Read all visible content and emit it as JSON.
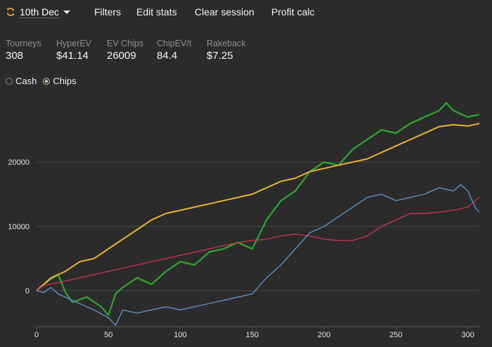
{
  "header": {
    "session_label": "10th Dec",
    "menu": [
      "Filters",
      "Edit stats",
      "Clear session",
      "Profit calc"
    ]
  },
  "stats": [
    {
      "title": "Tourneys",
      "value": "308"
    },
    {
      "title": "HyperEV",
      "value": "$41.14"
    },
    {
      "title": "EV Chips",
      "value": "26009"
    },
    {
      "title": "ChipEV/t",
      "value": "84.4"
    },
    {
      "title": "Rakeback",
      "value": "$7.25"
    }
  ],
  "mode": {
    "options": [
      "Cash",
      "Chips"
    ],
    "selected": "Chips"
  },
  "chart_data": {
    "type": "line",
    "xlim": [
      0,
      308
    ],
    "ylim": [
      -5600,
      29500
    ],
    "x_ticks": [
      0,
      50,
      100,
      150,
      200,
      250,
      300
    ],
    "y_ticks": [
      0,
      10000,
      20000
    ],
    "grid": "horizontal",
    "series": [
      {
        "color": "#2ea02e",
        "points": [
          [
            0,
            0
          ],
          [
            8,
            1500
          ],
          [
            15,
            2500
          ],
          [
            20,
            -200
          ],
          [
            25,
            -1800
          ],
          [
            35,
            -1000
          ],
          [
            45,
            -2500
          ],
          [
            50,
            -3800
          ],
          [
            55,
            -500
          ],
          [
            60,
            500
          ],
          [
            70,
            2000
          ],
          [
            80,
            1000
          ],
          [
            90,
            3000
          ],
          [
            100,
            4500
          ],
          [
            110,
            4000
          ],
          [
            120,
            6000
          ],
          [
            130,
            6500
          ],
          [
            140,
            7500
          ],
          [
            150,
            6500
          ],
          [
            160,
            11000
          ],
          [
            170,
            14000
          ],
          [
            180,
            15500
          ],
          [
            190,
            18500
          ],
          [
            200,
            20000
          ],
          [
            210,
            19500
          ],
          [
            220,
            22000
          ],
          [
            230,
            23500
          ],
          [
            240,
            25000
          ],
          [
            250,
            24500
          ],
          [
            260,
            26000
          ],
          [
            270,
            27000
          ],
          [
            280,
            28000
          ],
          [
            285,
            29200
          ],
          [
            290,
            28000
          ],
          [
            300,
            27000
          ],
          [
            308,
            27400
          ]
        ]
      },
      {
        "color": "#e8b336",
        "points": [
          [
            0,
            0
          ],
          [
            10,
            2000
          ],
          [
            20,
            3000
          ],
          [
            30,
            4500
          ],
          [
            40,
            5000
          ],
          [
            50,
            6500
          ],
          [
            60,
            8000
          ],
          [
            70,
            9500
          ],
          [
            80,
            11000
          ],
          [
            90,
            12000
          ],
          [
            100,
            12500
          ],
          [
            110,
            13000
          ],
          [
            120,
            13500
          ],
          [
            130,
            14000
          ],
          [
            140,
            14500
          ],
          [
            150,
            15000
          ],
          [
            160,
            16000
          ],
          [
            170,
            17000
          ],
          [
            180,
            17500
          ],
          [
            190,
            18500
          ],
          [
            200,
            19000
          ],
          [
            210,
            19500
          ],
          [
            220,
            20000
          ],
          [
            230,
            20500
          ],
          [
            240,
            21500
          ],
          [
            250,
            22500
          ],
          [
            260,
            23500
          ],
          [
            270,
            24500
          ],
          [
            280,
            25500
          ],
          [
            290,
            25800
          ],
          [
            300,
            25600
          ],
          [
            308,
            26000
          ]
        ]
      },
      {
        "color": "#c8304f",
        "points": [
          [
            0,
            0
          ],
          [
            5,
            800
          ],
          [
            20,
            1500
          ],
          [
            40,
            2500
          ],
          [
            60,
            3500
          ],
          [
            80,
            4500
          ],
          [
            90,
            5000
          ],
          [
            100,
            5500
          ],
          [
            110,
            6000
          ],
          [
            120,
            6500
          ],
          [
            130,
            7000
          ],
          [
            140,
            7500
          ],
          [
            150,
            7800
          ],
          [
            160,
            8000
          ],
          [
            170,
            8500
          ],
          [
            180,
            8800
          ],
          [
            190,
            8500
          ],
          [
            200,
            8000
          ],
          [
            210,
            7800
          ],
          [
            220,
            7800
          ],
          [
            230,
            8500
          ],
          [
            240,
            10000
          ],
          [
            250,
            11000
          ],
          [
            260,
            12000
          ],
          [
            270,
            12000
          ],
          [
            280,
            12200
          ],
          [
            290,
            12500
          ],
          [
            300,
            13000
          ],
          [
            308,
            14500
          ]
        ]
      },
      {
        "color": "#5b8fc7",
        "points": [
          [
            0,
            0
          ],
          [
            5,
            -300
          ],
          [
            10,
            500
          ],
          [
            15,
            -500
          ],
          [
            20,
            -1000
          ],
          [
            30,
            -2000
          ],
          [
            40,
            -3000
          ],
          [
            50,
            -4200
          ],
          [
            55,
            -5400
          ],
          [
            60,
            -3000
          ],
          [
            70,
            -3500
          ],
          [
            80,
            -3000
          ],
          [
            90,
            -2500
          ],
          [
            100,
            -3000
          ],
          [
            110,
            -2500
          ],
          [
            120,
            -2000
          ],
          [
            130,
            -1500
          ],
          [
            140,
            -1000
          ],
          [
            150,
            -500
          ],
          [
            160,
            2000
          ],
          [
            170,
            4000
          ],
          [
            180,
            6500
          ],
          [
            190,
            9000
          ],
          [
            200,
            10000
          ],
          [
            210,
            11500
          ],
          [
            220,
            13000
          ],
          [
            230,
            14500
          ],
          [
            240,
            15000
          ],
          [
            250,
            14000
          ],
          [
            260,
            14500
          ],
          [
            270,
            15000
          ],
          [
            280,
            16000
          ],
          [
            290,
            15500
          ],
          [
            295,
            16500
          ],
          [
            300,
            15500
          ],
          [
            305,
            13000
          ],
          [
            308,
            12200
          ]
        ]
      }
    ]
  }
}
